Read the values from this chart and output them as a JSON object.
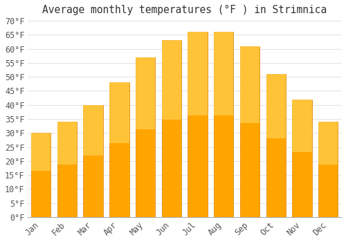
{
  "title": "Average monthly temperatures (°F ) in Strimnica",
  "months": [
    "Jan",
    "Feb",
    "Mar",
    "Apr",
    "May",
    "Jun",
    "Jul",
    "Aug",
    "Sep",
    "Oct",
    "Nov",
    "Dec"
  ],
  "values": [
    30,
    34,
    40,
    48,
    57,
    63,
    66,
    66,
    61,
    51,
    42,
    34
  ],
  "bar_color": "#FFA500",
  "bar_color_top": "#FFD050",
  "bar_edge_color": "#E08000",
  "background_color": "#FFFFFF",
  "grid_color": "#DDDDDD",
  "ylim": [
    0,
    70
  ],
  "yticks": [
    0,
    5,
    10,
    15,
    20,
    25,
    30,
    35,
    40,
    45,
    50,
    55,
    60,
    65,
    70
  ],
  "ylabel_suffix": "°F",
  "title_fontsize": 10.5,
  "tick_fontsize": 8.5,
  "font_family": "monospace"
}
